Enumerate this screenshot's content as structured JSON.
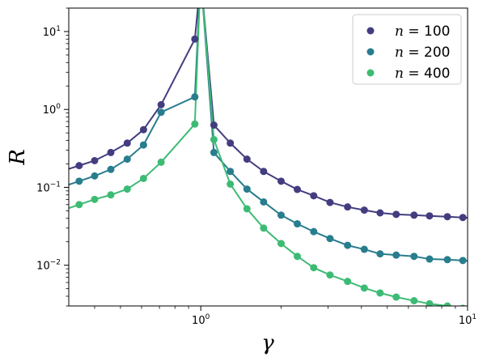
{
  "chart_data": {
    "type": "scatter",
    "xlabel": "γ",
    "ylabel": "R",
    "xscale": "log",
    "yscale": "log",
    "xlim": [
      0.32,
      10
    ],
    "ylim": [
      0.003,
      20
    ],
    "xticks": [
      {
        "value": 1,
        "base": "10",
        "exp": "0"
      },
      {
        "value": 10,
        "base": "10",
        "exp": "1"
      }
    ],
    "yticks": [
      {
        "value": 0.01,
        "base": "10",
        "exp": "−2"
      },
      {
        "value": 0.1,
        "base": "10",
        "exp": "−1"
      },
      {
        "value": 1,
        "base": "10",
        "exp": "0"
      },
      {
        "value": 10,
        "base": "10",
        "exp": "1"
      }
    ],
    "legend_position": "top-right",
    "series": [
      {
        "name_var": "n",
        "name_eq": " = 100",
        "color": "#433d80",
        "n": 100,
        "points": [
          [
            0.35,
            0.19
          ],
          [
            0.4,
            0.22
          ],
          [
            0.46,
            0.28
          ],
          [
            0.53,
            0.37
          ],
          [
            0.61,
            0.55
          ],
          [
            0.71,
            1.15
          ],
          [
            0.95,
            8.0
          ],
          [
            1.12,
            0.63
          ],
          [
            1.29,
            0.37
          ],
          [
            1.49,
            0.23
          ],
          [
            1.72,
            0.16
          ],
          [
            2.0,
            0.12
          ],
          [
            2.3,
            0.094
          ],
          [
            2.65,
            0.078
          ],
          [
            3.05,
            0.064
          ],
          [
            3.55,
            0.056
          ],
          [
            4.1,
            0.051
          ],
          [
            4.7,
            0.047
          ],
          [
            5.4,
            0.045
          ],
          [
            6.3,
            0.044
          ],
          [
            7.2,
            0.043
          ],
          [
            8.4,
            0.042
          ],
          [
            9.6,
            0.041
          ]
        ]
      },
      {
        "name_var": "n",
        "name_eq": " = 200",
        "color": "#287d8e",
        "n": 200,
        "points": [
          [
            0.35,
            0.12
          ],
          [
            0.4,
            0.14
          ],
          [
            0.46,
            0.17
          ],
          [
            0.53,
            0.23
          ],
          [
            0.61,
            0.35
          ],
          [
            0.71,
            0.92
          ],
          [
            0.95,
            1.45
          ],
          [
            1.12,
            0.28
          ],
          [
            1.29,
            0.16
          ],
          [
            1.49,
            0.095
          ],
          [
            1.72,
            0.065
          ],
          [
            2.0,
            0.044
          ],
          [
            2.3,
            0.034
          ],
          [
            2.65,
            0.027
          ],
          [
            3.05,
            0.022
          ],
          [
            3.55,
            0.018
          ],
          [
            4.1,
            0.016
          ],
          [
            4.7,
            0.014
          ],
          [
            5.4,
            0.0135
          ],
          [
            6.3,
            0.013
          ],
          [
            7.2,
            0.012
          ],
          [
            8.4,
            0.0118
          ],
          [
            9.6,
            0.0115
          ]
        ]
      },
      {
        "name_var": "n",
        "name_eq": " = 400",
        "color": "#3dbb74",
        "n": 400,
        "points": [
          [
            0.35,
            0.06
          ],
          [
            0.4,
            0.07
          ],
          [
            0.46,
            0.08
          ],
          [
            0.53,
            0.095
          ],
          [
            0.61,
            0.13
          ],
          [
            0.71,
            0.21
          ],
          [
            0.95,
            0.65
          ],
          [
            1.12,
            0.41
          ],
          [
            1.29,
            0.11
          ],
          [
            1.49,
            0.053
          ],
          [
            1.72,
            0.03
          ],
          [
            2.0,
            0.019
          ],
          [
            2.3,
            0.013
          ],
          [
            2.65,
            0.0093
          ],
          [
            3.05,
            0.0075
          ],
          [
            3.55,
            0.0062
          ],
          [
            4.1,
            0.0051
          ],
          [
            4.7,
            0.0044
          ],
          [
            5.4,
            0.0039
          ],
          [
            6.3,
            0.0035
          ],
          [
            7.2,
            0.0032
          ],
          [
            8.4,
            0.003
          ],
          [
            9.6,
            0.0028
          ]
        ]
      }
    ]
  }
}
